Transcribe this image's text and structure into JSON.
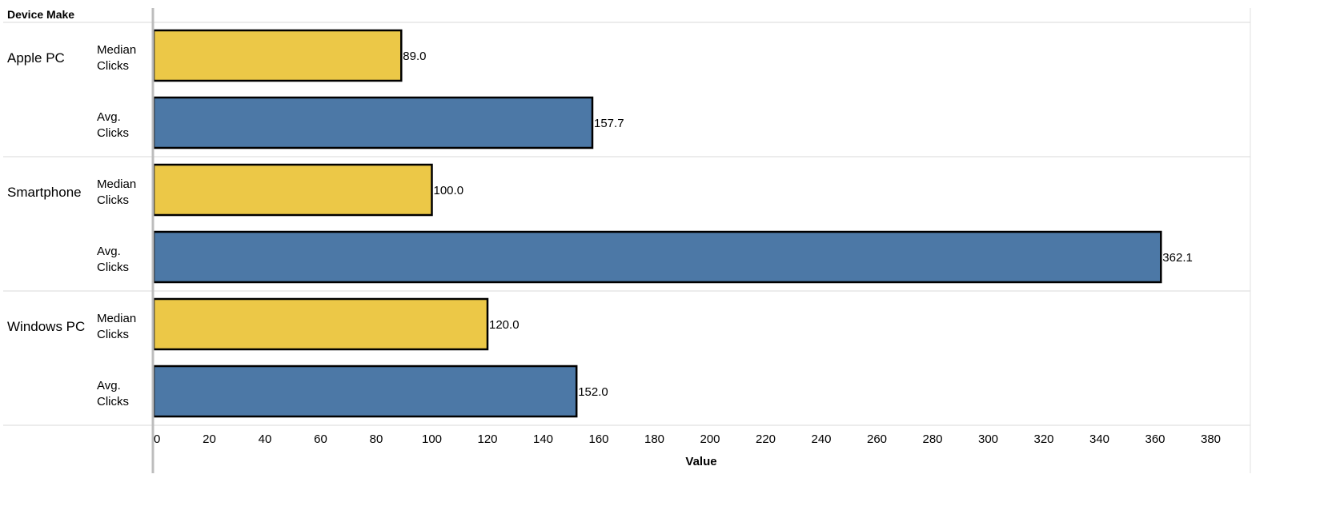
{
  "header": {
    "row_header_title": "Device Make"
  },
  "chart_data": {
    "type": "bar",
    "orientation": "horizontal",
    "xlabel": "Value",
    "xlim": [
      0,
      380
    ],
    "x_ticks": [
      0,
      20,
      40,
      60,
      80,
      100,
      120,
      140,
      160,
      180,
      200,
      220,
      240,
      260,
      280,
      300,
      320,
      340,
      360,
      380
    ],
    "groups": [
      {
        "name": "Apple PC",
        "bars": [
          {
            "measure": "Median\nClicks",
            "value": 89.0,
            "label": "89.0"
          },
          {
            "measure": "Avg.\nClicks",
            "value": 157.7,
            "label": "157.7"
          }
        ]
      },
      {
        "name": "Smartphone",
        "bars": [
          {
            "measure": "Median\nClicks",
            "value": 100.0,
            "label": "100.0"
          },
          {
            "measure": "Avg.\nClicks",
            "value": 362.1,
            "label": "362.1"
          }
        ]
      },
      {
        "name": "Windows PC",
        "bars": [
          {
            "measure": "Median\nClicks",
            "value": 120.0,
            "label": "120.0"
          },
          {
            "measure": "Avg.\nClicks",
            "value": 152.0,
            "label": "152.0"
          }
        ]
      }
    ],
    "colors": {
      "Median\nClicks": "#ECC847",
      "Avg.\nClicks": "#4C78A6"
    },
    "grid": false,
    "legend": "none"
  }
}
